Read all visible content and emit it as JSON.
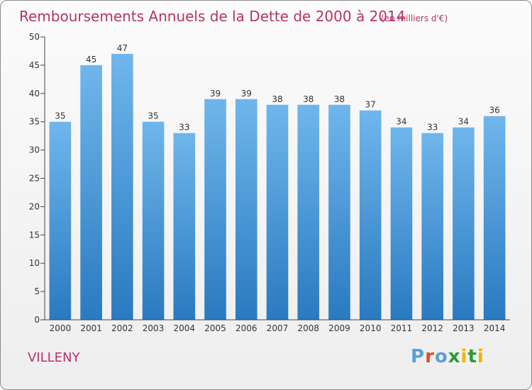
{
  "chart_data": {
    "type": "bar",
    "title": "Remboursements Annuels de la Dette de 2000 à 2014",
    "subtitle": "(en milliers d'€)",
    "categories": [
      "2000",
      "2001",
      "2002",
      "2003",
      "2004",
      "2005",
      "2006",
      "2007",
      "2008",
      "2009",
      "2010",
      "2011",
      "2012",
      "2013",
      "2014"
    ],
    "values": [
      35,
      45,
      47,
      35,
      33,
      39,
      39,
      38,
      38,
      38,
      37,
      34,
      33,
      34,
      36
    ],
    "ylim": [
      0,
      50
    ],
    "yticks": [
      0,
      5,
      10,
      15,
      20,
      25,
      30,
      35,
      40,
      45,
      50
    ],
    "grid": false,
    "data_labels": true,
    "bar_color": "#3d8fd4"
  },
  "commune": "VILLENY",
  "logo": {
    "letters": [
      "P",
      "r",
      "o",
      "x",
      "i",
      "t",
      "i"
    ],
    "colors": [
      "#5aa0d8",
      "#e0502a",
      "#5aa0d8",
      "#2e9a3a",
      "#f0b400",
      "#2e9a3a",
      "#f0b400"
    ]
  }
}
